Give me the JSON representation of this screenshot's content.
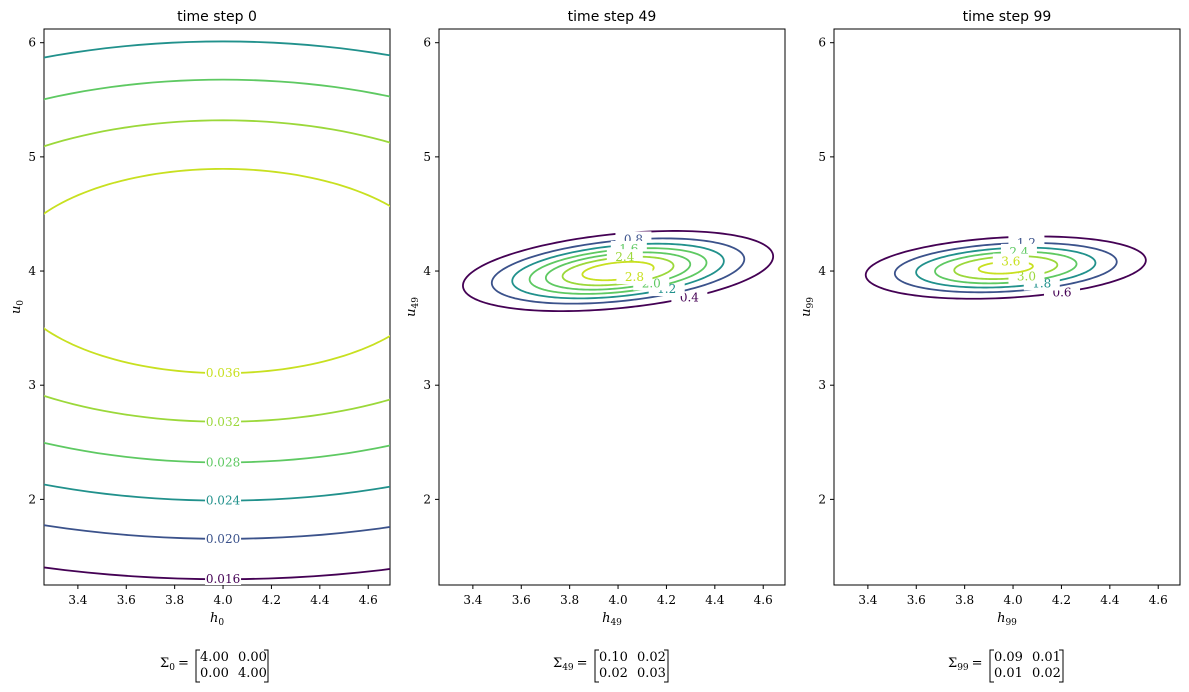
{
  "chart_data": [
    {
      "type": "contour",
      "title": "time step 0",
      "xlabel": "h",
      "xlabel_sub": "0",
      "ylabel": "u",
      "ylabel_sub": "0",
      "xlim": [
        3.26,
        4.69
      ],
      "ylim": [
        1.25,
        6.12
      ],
      "xticks": [
        "3.4",
        "3.6",
        "3.8",
        "4.0",
        "4.2",
        "4.4",
        "4.6"
      ],
      "yticks": [
        "2",
        "3",
        "4",
        "5",
        "6"
      ],
      "mean": [
        4.0,
        4.0
      ],
      "cov": [
        [
          4.0,
          0.0
        ],
        [
          0.0,
          4.0
        ]
      ],
      "levels": [
        0.016,
        0.02,
        0.024,
        0.028,
        0.032,
        0.036
      ],
      "level_labels": [
        "0.016",
        "0.020",
        "0.024",
        "0.028",
        "0.032",
        "0.036"
      ],
      "sigma_label": "Σ",
      "sigma_sub": "0",
      "sigma_matrix": [
        [
          "4.00",
          "0.00"
        ],
        [
          "0.00",
          "4.00"
        ]
      ]
    },
    {
      "type": "contour",
      "title": "time step 49",
      "xlabel": "h",
      "xlabel_sub": "49",
      "ylabel": "u",
      "ylabel_sub": "49",
      "xlim": [
        3.26,
        4.69
      ],
      "ylim": [
        1.25,
        6.12
      ],
      "xticks": [
        "3.4",
        "3.6",
        "3.8",
        "4.0",
        "4.2",
        "4.4",
        "4.6"
      ],
      "yticks": [
        "2",
        "3",
        "4",
        "5",
        "6"
      ],
      "mean": [
        4.0,
        4.0
      ],
      "cov": [
        [
          0.1,
          0.02
        ],
        [
          0.02,
          0.03
        ]
      ],
      "levels": [
        0.4,
        0.8,
        1.2,
        1.6,
        2.0,
        2.4,
        2.8
      ],
      "level_labels": [
        "0.4",
        "0.8",
        "1.2",
        "1.6",
        "2.0",
        "2.4",
        "2.8"
      ],
      "sigma_label": "Σ",
      "sigma_sub": "49",
      "sigma_matrix": [
        [
          "0.10",
          "0.02"
        ],
        [
          "0.02",
          "0.03"
        ]
      ]
    },
    {
      "type": "contour",
      "title": "time step 99",
      "xlabel": "h",
      "xlabel_sub": "99",
      "ylabel": "u",
      "ylabel_sub": "99",
      "xlim": [
        3.26,
        4.69
      ],
      "ylim": [
        1.25,
        6.12
      ],
      "xticks": [
        "3.4",
        "3.6",
        "3.8",
        "4.0",
        "4.2",
        "4.4",
        "4.6"
      ],
      "yticks": [
        "2",
        "3",
        "4",
        "5",
        "6"
      ],
      "mean": [
        3.97,
        4.03
      ],
      "cov": [
        [
          0.09,
          0.01
        ],
        [
          0.01,
          0.02
        ]
      ],
      "levels": [
        0.6,
        1.2,
        1.8,
        2.4,
        3.0,
        3.6
      ],
      "level_labels": [
        "0.6",
        "1.2",
        "1.8",
        "2.4",
        "3.0",
        "3.6"
      ],
      "sigma_label": "Σ",
      "sigma_sub": "99",
      "sigma_matrix": [
        [
          "0.09",
          "0.01"
        ],
        [
          "0.01",
          "0.02"
        ]
      ]
    }
  ],
  "colors": {
    "viridis": [
      "#440154",
      "#3b528b",
      "#21918c",
      "#5ec962",
      "#9bd83a",
      "#c8e020",
      "#fde725"
    ],
    "axis": "#000000",
    "background": "#ffffff"
  }
}
